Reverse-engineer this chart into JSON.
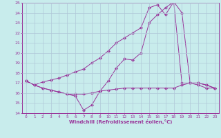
{
  "xlabel": "Windchill (Refroidissement éolien,°C)",
  "xlim": [
    -0.5,
    23.5
  ],
  "ylim": [
    14,
    25
  ],
  "xticks": [
    0,
    1,
    2,
    3,
    4,
    5,
    6,
    7,
    8,
    9,
    10,
    11,
    12,
    13,
    14,
    15,
    16,
    17,
    18,
    19,
    20,
    21,
    22,
    23
  ],
  "yticks": [
    14,
    15,
    16,
    17,
    18,
    19,
    20,
    21,
    22,
    23,
    24,
    25
  ],
  "bg_color": "#c8ecec",
  "line_color": "#993399",
  "grid_color": "#b0c8d8",
  "line1_x": [
    0,
    1,
    2,
    3,
    4,
    5,
    6,
    7,
    8,
    9,
    10,
    11,
    12,
    13,
    14,
    15,
    16,
    17,
    18,
    19,
    20,
    21,
    22,
    23
  ],
  "line1_y": [
    17.2,
    16.8,
    16.5,
    16.3,
    16.1,
    15.9,
    15.7,
    14.3,
    14.8,
    16.2,
    17.2,
    18.5,
    19.4,
    19.3,
    20.0,
    23.0,
    23.8,
    24.5,
    25.1,
    24.0,
    17.0,
    17.0,
    16.8,
    16.5
  ],
  "line2_x": [
    0,
    1,
    2,
    3,
    4,
    5,
    6,
    7,
    8,
    9,
    10,
    11,
    12,
    13,
    14,
    15,
    16,
    17,
    18,
    19,
    20,
    21,
    22,
    23
  ],
  "line2_y": [
    17.2,
    16.8,
    17.1,
    17.3,
    17.5,
    17.8,
    18.1,
    18.4,
    19.0,
    19.5,
    20.2,
    21.0,
    21.5,
    22.0,
    22.5,
    24.5,
    24.8,
    23.8,
    25.1,
    17.0,
    17.0,
    17.0,
    16.8,
    16.5
  ],
  "line3_x": [
    0,
    1,
    2,
    3,
    4,
    5,
    6,
    7,
    8,
    9,
    10,
    11,
    12,
    13,
    14,
    15,
    16,
    17,
    18,
    19,
    20,
    21,
    22,
    23
  ],
  "line3_y": [
    17.2,
    16.8,
    16.5,
    16.3,
    16.1,
    15.9,
    15.9,
    15.9,
    16.0,
    16.2,
    16.3,
    16.4,
    16.5,
    16.5,
    16.5,
    16.5,
    16.5,
    16.5,
    16.5,
    16.8,
    17.0,
    16.8,
    16.5,
    16.5
  ]
}
